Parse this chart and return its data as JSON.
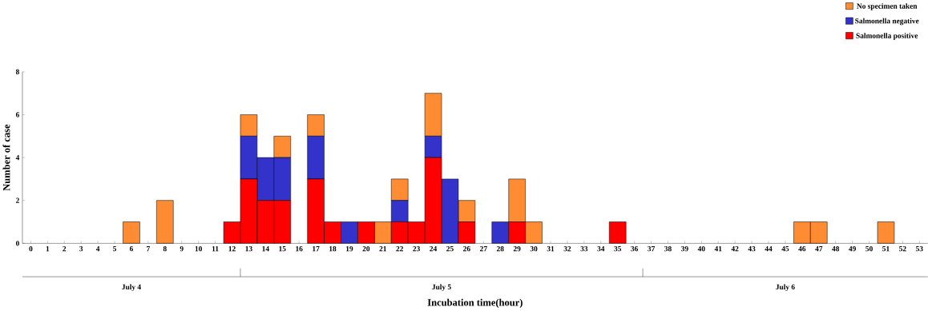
{
  "chart_data": {
    "type": "bar",
    "stacked": true,
    "xlabel": "Incubation time(hour)",
    "ylabel": "Number of case",
    "categories": [
      "0",
      "1",
      "2",
      "3",
      "4",
      "5",
      "6",
      "7",
      "8",
      "9",
      "10",
      "11",
      "12",
      "13",
      "14",
      "15",
      "16",
      "17",
      "18",
      "19",
      "20",
      "21",
      "22",
      "23",
      "24",
      "25",
      "26",
      "27",
      "28",
      "29",
      "30",
      "31",
      "32",
      "33",
      "34",
      "35",
      "36",
      "37",
      "38",
      "39",
      "40",
      "41",
      "42",
      "43",
      "44",
      "45",
      "46",
      "47",
      "48",
      "49",
      "50",
      "51",
      "52",
      "53"
    ],
    "series": [
      {
        "name": "Salmonella positive",
        "color": "#ff0000",
        "values": [
          0,
          0,
          0,
          0,
          0,
          0,
          0,
          0,
          0,
          0,
          0,
          0,
          1,
          3,
          2,
          2,
          0,
          3,
          1,
          0,
          1,
          0,
          1,
          1,
          4,
          0,
          1,
          0,
          0,
          1,
          0,
          0,
          0,
          0,
          0,
          1,
          0,
          0,
          0,
          0,
          0,
          0,
          0,
          0,
          0,
          0,
          0,
          0,
          0,
          0,
          0,
          0,
          0,
          0
        ]
      },
      {
        "name": "Salmonella negative",
        "color": "#3333cc",
        "values": [
          0,
          0,
          0,
          0,
          0,
          0,
          0,
          0,
          0,
          0,
          0,
          0,
          0,
          2,
          2,
          2,
          0,
          2,
          0,
          1,
          0,
          0,
          1,
          0,
          1,
          3,
          0,
          0,
          1,
          0,
          0,
          0,
          0,
          0,
          0,
          0,
          0,
          0,
          0,
          0,
          0,
          0,
          0,
          0,
          0,
          0,
          0,
          0,
          0,
          0,
          0,
          0,
          0,
          0
        ]
      },
      {
        "name": "No specimen taken",
        "color": "#ff8c33",
        "values": [
          0,
          0,
          0,
          0,
          0,
          0,
          1,
          0,
          2,
          0,
          0,
          0,
          0,
          1,
          0,
          1,
          0,
          1,
          0,
          0,
          0,
          1,
          1,
          0,
          2,
          0,
          1,
          0,
          0,
          2,
          1,
          0,
          0,
          0,
          0,
          0,
          0,
          0,
          0,
          0,
          0,
          0,
          0,
          0,
          0,
          0,
          1,
          1,
          0,
          0,
          0,
          1,
          0,
          0
        ]
      }
    ],
    "ylim": [
      0,
      8
    ],
    "yticks": [
      0,
      2,
      4,
      6,
      8
    ],
    "legend": "top right",
    "annotations": [
      "July 4",
      "July 5",
      "July 6"
    ]
  }
}
